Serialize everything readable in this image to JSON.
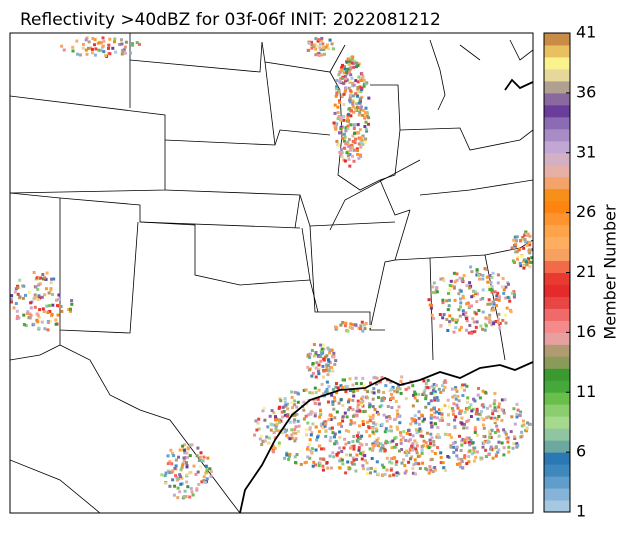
{
  "title": "Reflectivity >40dBZ for 03f-06f INIT: 2022081212",
  "colorbar": {
    "label": "Member Number",
    "range": [
      1,
      41
    ],
    "ticks": [
      1,
      6,
      11,
      16,
      21,
      26,
      31,
      36,
      41
    ],
    "colors": [
      "#a6c8e0",
      "#86b4d8",
      "#5f9ecb",
      "#3e88bd",
      "#2b79b4",
      "#6aa8a0",
      "#8fc5a0",
      "#a6d98c",
      "#8cce6f",
      "#6abf4b",
      "#44a83a",
      "#3a9a30",
      "#8a9a5a",
      "#b09a70",
      "#e6a0a0",
      "#f48a8a",
      "#f06a6a",
      "#e84545",
      "#e42a2a",
      "#e83a30",
      "#f26a4a",
      "#f7a060",
      "#fdae5e",
      "#fda44a",
      "#fd9430",
      "#fe8410",
      "#f7901a",
      "#f4a36a",
      "#e6b0a6",
      "#d4b0c4",
      "#c2a6d4",
      "#a88cc6",
      "#8a6bb4",
      "#6a3d9a",
      "#8a6a9e",
      "#b0a090",
      "#e6d89a",
      "#fbf28e",
      "#e8c060",
      "#c88c46"
    ]
  }
}
